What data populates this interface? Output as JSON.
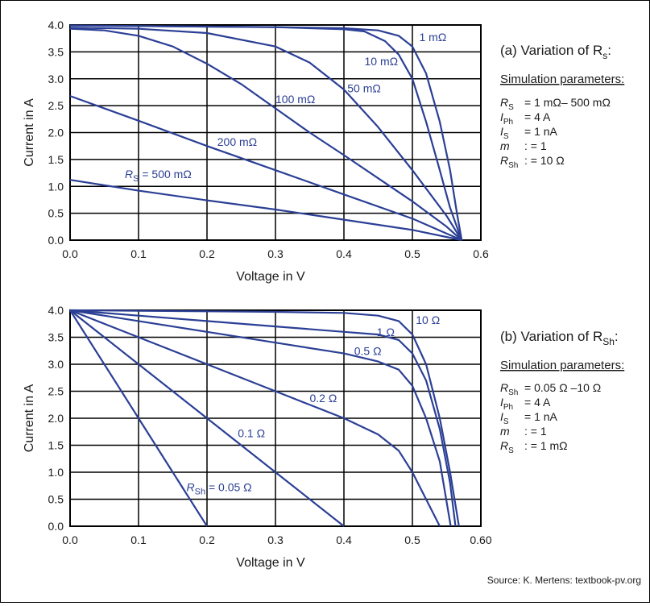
{
  "source": "Source: K. Mertens: textbook-pv.org",
  "colors": {
    "curve": "#2b3f95",
    "grid": "#000000"
  },
  "chart_data": [
    {
      "type": "line",
      "title": "(a) Variation of R",
      "title_sub": "s",
      "xlabel": "Voltage in V",
      "ylabel": "Current in A",
      "xlim": [
        0,
        0.6
      ],
      "ylim": [
        0,
        4
      ],
      "x_ticks": [
        "0.0",
        "0.1",
        "0.2",
        "0.3",
        "0.4",
        "0.5",
        "0.6"
      ],
      "y_ticks": [
        "0.0",
        "0.5",
        "1.0",
        "1.5",
        "2.0",
        "2.5",
        "3.0",
        "3.5",
        "4.0"
      ],
      "grid": true,
      "params_heading": "Simulation parameters:",
      "params": [
        {
          "sym": "R",
          "sub": "S",
          "value": "= 1 mΩ– 500 mΩ"
        },
        {
          "sym": "I",
          "sub": "Ph",
          "value": "= 4 A"
        },
        {
          "sym": "I",
          "sub": "S",
          "value": "= 1 nA"
        },
        {
          "sym": "m",
          "sub": "",
          "value": ": = 1"
        },
        {
          "sym": "R",
          "sub": "Sh",
          "value": ": = 10 Ω"
        }
      ],
      "series": [
        {
          "name": "1 mΩ",
          "x": [
            0,
            0.1,
            0.2,
            0.3,
            0.4,
            0.45,
            0.48,
            0.5,
            0.52,
            0.54,
            0.555,
            0.565,
            0.572
          ],
          "y": [
            3.99,
            3.98,
            3.97,
            3.96,
            3.94,
            3.9,
            3.8,
            3.6,
            3.1,
            2.2,
            1.3,
            0.5,
            0
          ]
        },
        {
          "name": "10 mΩ",
          "x": [
            0,
            0.1,
            0.2,
            0.3,
            0.4,
            0.43,
            0.46,
            0.48,
            0.5,
            0.52,
            0.54,
            0.555,
            0.572
          ],
          "y": [
            3.99,
            3.98,
            3.97,
            3.96,
            3.92,
            3.88,
            3.7,
            3.45,
            3.0,
            2.2,
            1.3,
            0.6,
            0
          ]
        },
        {
          "name": "50 mΩ",
          "x": [
            0,
            0.1,
            0.2,
            0.3,
            0.35,
            0.4,
            0.45,
            0.5,
            0.55,
            0.572
          ],
          "y": [
            3.95,
            3.93,
            3.85,
            3.6,
            3.3,
            2.8,
            2.1,
            1.3,
            0.45,
            0
          ]
        },
        {
          "name": "100 mΩ",
          "x": [
            0,
            0.05,
            0.1,
            0.15,
            0.2,
            0.25,
            0.3,
            0.35,
            0.4,
            0.45,
            0.5,
            0.55,
            0.572
          ],
          "y": [
            3.93,
            3.9,
            3.8,
            3.6,
            3.28,
            2.9,
            2.45,
            2.0,
            1.58,
            1.15,
            0.72,
            0.25,
            0
          ]
        },
        {
          "name": "200 mΩ",
          "x": [
            0,
            0.1,
            0.2,
            0.3,
            0.4,
            0.5,
            0.572
          ],
          "y": [
            2.68,
            2.22,
            1.75,
            1.3,
            0.85,
            0.4,
            0
          ]
        },
        {
          "name": "R_S = 500 mΩ",
          "x": [
            0,
            0.1,
            0.2,
            0.3,
            0.4,
            0.5,
            0.572
          ],
          "y": [
            1.12,
            0.92,
            0.74,
            0.57,
            0.38,
            0.19,
            0
          ]
        }
      ],
      "series_labels": [
        {
          "text": "1 mΩ",
          "at": [
            0.51,
            3.7
          ]
        },
        {
          "text": "10 mΩ",
          "at": [
            0.43,
            3.25
          ]
        },
        {
          "text": "50 mΩ",
          "at": [
            0.405,
            2.75
          ]
        },
        {
          "text": "100 mΩ",
          "at": [
            0.3,
            2.55
          ]
        },
        {
          "text": "200 mΩ",
          "at": [
            0.215,
            1.75
          ]
        },
        {
          "text": "R",
          "sub": "S",
          "tail": " = 500 mΩ",
          "at": [
            0.08,
            1.15
          ]
        }
      ]
    },
    {
      "type": "line",
      "title": "(b) Variation of R",
      "title_sub": "Sh",
      "title_tail": ":",
      "xlabel": "Voltage in V",
      "ylabel": "Current in A",
      "xlim": [
        0,
        0.6
      ],
      "ylim": [
        0,
        4
      ],
      "x_ticks": [
        "0.0",
        "0.1",
        "0.2",
        "0.3",
        "0.4",
        "0.5",
        "0.60"
      ],
      "y_ticks": [
        "0.0",
        "0.5",
        "1.0",
        "1.5",
        "2.0",
        "2.5",
        "3.0",
        "3.5",
        "4.0"
      ],
      "grid": true,
      "params_heading": "Simulation parameters:",
      "params": [
        {
          "sym": "R",
          "sub": "Sh",
          "value": "= 0.05 Ω –10 Ω"
        },
        {
          "sym": "I",
          "sub": "Ph",
          "value": "= 4 A"
        },
        {
          "sym": "I",
          "sub": "S",
          "value": "= 1 nA"
        },
        {
          "sym": "m",
          "sub": "",
          "value": ": = 1"
        },
        {
          "sym": "R",
          "sub": "S",
          "value": ": = 1 mΩ"
        }
      ],
      "series": [
        {
          "name": "10 Ω",
          "x": [
            0,
            0.1,
            0.2,
            0.3,
            0.4,
            0.45,
            0.48,
            0.5,
            0.52,
            0.54,
            0.555,
            0.568
          ],
          "y": [
            4.0,
            3.99,
            3.98,
            3.97,
            3.95,
            3.9,
            3.8,
            3.55,
            3.0,
            2.0,
            1.0,
            0
          ]
        },
        {
          "name": "1 Ω",
          "x": [
            0,
            0.1,
            0.2,
            0.3,
            0.4,
            0.45,
            0.48,
            0.5,
            0.52,
            0.54,
            0.555,
            0.563
          ],
          "y": [
            4.0,
            3.9,
            3.8,
            3.7,
            3.6,
            3.55,
            3.45,
            3.2,
            2.7,
            1.8,
            0.8,
            0
          ]
        },
        {
          "name": "0.5 Ω",
          "x": [
            0,
            0.1,
            0.2,
            0.3,
            0.4,
            0.45,
            0.48,
            0.5,
            0.52,
            0.54,
            0.556
          ],
          "y": [
            4.0,
            3.8,
            3.6,
            3.4,
            3.2,
            3.05,
            2.9,
            2.6,
            2.0,
            1.2,
            0
          ]
        },
        {
          "name": "0.2 Ω",
          "x": [
            0,
            0.1,
            0.2,
            0.3,
            0.4,
            0.45,
            0.48,
            0.5,
            0.52,
            0.54
          ],
          "y": [
            4.0,
            3.5,
            3.0,
            2.5,
            2.0,
            1.7,
            1.4,
            1.0,
            0.5,
            0
          ]
        },
        {
          "name": "0.1 Ω",
          "x": [
            0,
            0.1,
            0.2,
            0.3,
            0.4
          ],
          "y": [
            4.0,
            3.0,
            2.0,
            1.0,
            0
          ]
        },
        {
          "name": "R_Sh = 0.05 Ω",
          "x": [
            0,
            0.1,
            0.2
          ],
          "y": [
            4.0,
            2.0,
            0
          ]
        }
      ],
      "series_labels": [
        {
          "text": "10 Ω",
          "at": [
            0.505,
            3.75
          ]
        },
        {
          "text": "1 Ω",
          "at": [
            0.448,
            3.52
          ]
        },
        {
          "text": "0.5 Ω",
          "at": [
            0.415,
            3.17
          ]
        },
        {
          "text": "0.2 Ω",
          "at": [
            0.35,
            2.3
          ]
        },
        {
          "text": "0.1 Ω",
          "at": [
            0.245,
            1.65
          ]
        },
        {
          "text": "R",
          "sub": "Sh",
          "tail": " = 0.05 Ω",
          "at": [
            0.17,
            0.65
          ]
        }
      ]
    }
  ]
}
